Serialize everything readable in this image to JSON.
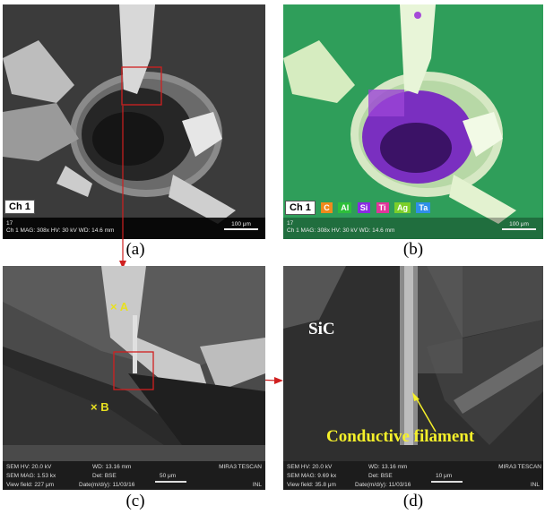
{
  "captions": {
    "a": "(a)",
    "b": "(b)",
    "c": "(c)",
    "d": "(d)"
  },
  "panel_a": {
    "ch": "Ch 1",
    "info_num": "17",
    "info_line": "Ch 1   MAG: 308x   HV: 30 kV   WD: 14.6 mm",
    "scale": "100 μm"
  },
  "panel_b": {
    "ch": "Ch 1",
    "legend": [
      {
        "label": "C",
        "color": "#f08a1c"
      },
      {
        "label": "Al",
        "color": "#2dbf3a"
      },
      {
        "label": "Si",
        "color": "#8a2be2"
      },
      {
        "label": "Ti",
        "color": "#e0359a"
      },
      {
        "label": "Ag",
        "color": "#7ccf2a"
      },
      {
        "label": "Ta",
        "color": "#2f8fe8"
      }
    ],
    "info_num": "17",
    "info_line": "Ch 1   MAG: 308x   HV: 30 kV   WD: 14.6 mm",
    "scale": "100 μm"
  },
  "panel_c": {
    "marker_a": "A",
    "marker_b": "B",
    "row1": [
      "SEM HV: 20.0 kV",
      "WD: 13.16 mm",
      "",
      "MIRA3 TESCAN"
    ],
    "row2": [
      "SEM MAG: 1.53 kx",
      "Det: BSE",
      "50 μm",
      ""
    ],
    "row3": [
      "View field: 227 μm",
      "Date(m/d/y): 11/03/16",
      "",
      "INL"
    ]
  },
  "panel_d": {
    "sic": "SiC",
    "filament": "Conductive filament",
    "row1": [
      "SEM HV: 20.0 kV",
      "WD: 13.16 mm",
      "",
      "MIRA3 TESCAN"
    ],
    "row2": [
      "SEM MAG: 9.69 kx",
      "Det: BSE",
      "10 μm",
      ""
    ],
    "row3": [
      "View field: 35.8 μm",
      "Date(m/d/y): 11/03/16",
      "",
      "INL"
    ]
  }
}
